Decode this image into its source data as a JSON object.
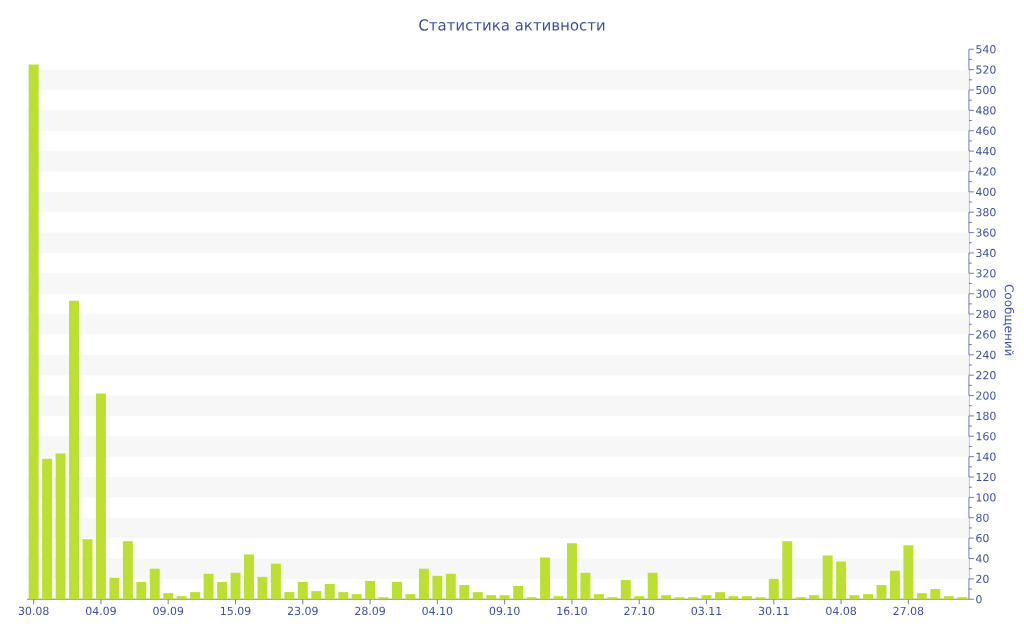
{
  "chart_data": {
    "type": "bar",
    "title": "Статистика активности",
    "ylabel": "Сообщений",
    "categories": [
      "30.08",
      null,
      null,
      null,
      null,
      "04.09",
      null,
      null,
      null,
      null,
      "09.09",
      null,
      null,
      null,
      null,
      "15.09",
      null,
      null,
      null,
      null,
      "23.09",
      null,
      null,
      null,
      null,
      "28.09",
      null,
      null,
      null,
      null,
      "04.10",
      null,
      null,
      null,
      null,
      "09.10",
      null,
      null,
      null,
      null,
      "16.10",
      null,
      null,
      null,
      null,
      "27.10",
      null,
      null,
      null,
      null,
      "03.11",
      null,
      null,
      null,
      null,
      "30.11",
      null,
      null,
      null,
      null,
      "04.08",
      null,
      null,
      null,
      null,
      "27.08",
      null,
      null,
      null,
      null
    ],
    "values": [
      525,
      138,
      143,
      293,
      59,
      202,
      21,
      57,
      17,
      30,
      6,
      3,
      7,
      25,
      17,
      26,
      44,
      22,
      35,
      7,
      17,
      8,
      15,
      7,
      5,
      18,
      2,
      17,
      5,
      30,
      23,
      25,
      14,
      7,
      4,
      4,
      13,
      2,
      41,
      3,
      55,
      26,
      5,
      2,
      19,
      3,
      26,
      4,
      2,
      2,
      4,
      7,
      3,
      3,
      2,
      20,
      57,
      2,
      4,
      43,
      37,
      4,
      5,
      14,
      28,
      53,
      6,
      10,
      3,
      2
    ],
    "color": "#bce032",
    "ylim": [
      0,
      540
    ],
    "yticks": [
      0,
      20,
      40,
      60,
      80,
      100,
      120,
      140,
      160,
      180,
      200,
      220,
      240,
      260,
      280,
      300,
      320,
      340,
      360,
      380,
      400,
      420,
      440,
      460,
      480,
      500,
      520,
      540
    ],
    "bands": [
      {
        "axis": "y",
        "from": 20,
        "to": 40,
        "color": "#f7f7f7"
      },
      {
        "axis": "y",
        "from": 60,
        "to": 80,
        "color": "#f7f7f7"
      },
      {
        "axis": "y",
        "from": 100,
        "to": 120,
        "color": "#f7f7f7"
      },
      {
        "axis": "y",
        "from": 140,
        "to": 160,
        "color": "#f7f7f7"
      },
      {
        "axis": "y",
        "from": 180,
        "to": 200,
        "color": "#f7f7f7"
      },
      {
        "axis": "y",
        "from": 220,
        "to": 240,
        "color": "#f7f7f7"
      },
      {
        "axis": "y",
        "from": 260,
        "to": 280,
        "color": "#f7f7f7"
      },
      {
        "axis": "y",
        "from": 300,
        "to": 320,
        "color": "#f7f7f7"
      },
      {
        "axis": "y",
        "from": 340,
        "to": 360,
        "color": "#f7f7f7"
      },
      {
        "axis": "y",
        "from": 380,
        "to": 400,
        "color": "#f7f7f7"
      },
      {
        "axis": "y",
        "from": 420,
        "to": 440,
        "color": "#f7f7f7"
      },
      {
        "axis": "y",
        "from": 460,
        "to": 480,
        "color": "#f7f7f7"
      },
      {
        "axis": "y",
        "from": 500,
        "to": 520,
        "color": "#f7f7f7"
      }
    ]
  }
}
